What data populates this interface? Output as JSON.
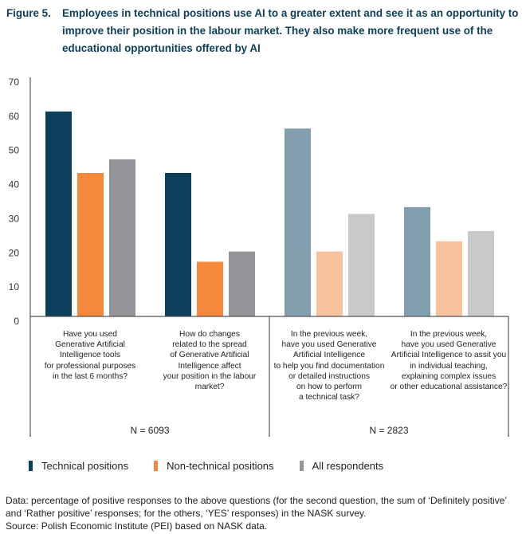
{
  "figure": {
    "label": "Figure 5.",
    "title": "Employees in technical positions use AI to a greater extent and see it as an opportunity to improve their position in the labour market. They also make more frequent use of the educational opportunities offered by AI"
  },
  "chart_data": {
    "type": "bar",
    "title": "Employees in technical positions use AI to a greater extent and see it as an opportunity to improve their position in the labour market. They also make more frequent use of the educational opportunities offered by AI",
    "xlabel": "",
    "ylabel": "",
    "ylim": [
      0,
      70
    ],
    "yticks": [
      0,
      10,
      20,
      30,
      40,
      50,
      60,
      70
    ],
    "grid": false,
    "legend_position": "bottom-left",
    "categories": [
      "Have you used\nGenerative Artificial\nIntelligence tools\nfor professional purposes\nin the last 6 months?",
      "How do changes\nrelated to the spread\nof Generative Artificial\nIntelligence affect\nyour position in the labour\nmarket?",
      "In the previous week,\nhave you used Generative\nArtificial Intelligence\nto help you find documentation\nor detailed instructions\non how to perform\na technical task?",
      "In the previous week,\nhave you used Generative\nArtificial Intelligence to assit you\nin individual teaching,\nexplaining complex issues\nor other educational assistance?"
    ],
    "series": [
      {
        "name": "Technical positions",
        "values": [
          60,
          42,
          55,
          32
        ],
        "colors": [
          "#0b3f5a",
          "#0b3f5a",
          "#829fae",
          "#829fae"
        ]
      },
      {
        "name": "Non-technical positions",
        "values": [
          42,
          16,
          19,
          22
        ],
        "colors": [
          "#f5883b",
          "#f5883b",
          "#f8c29c",
          "#f8c29c"
        ]
      },
      {
        "name": "All respondents",
        "values": [
          46,
          19,
          30,
          25
        ],
        "colors": [
          "#939598",
          "#939598",
          "#c8c9cb",
          "#c8c9cb"
        ]
      }
    ],
    "sample_groups": [
      {
        "label": "N = 6093",
        "categories": [
          0,
          1
        ]
      },
      {
        "label": "N = 2823",
        "categories": [
          2,
          3
        ]
      }
    ]
  },
  "legend": [
    {
      "label": "Technical positions",
      "color": "#0b3f5a"
    },
    {
      "label": "Non-technical positions",
      "color": "#f5883b"
    },
    {
      "label": "All respondents",
      "color": "#939598"
    }
  ],
  "footnote": {
    "data_note": "Data: percentage of positive responses to the above questions (for the second question, the sum of ‘Definitely positive’ and ‘Rather positive’ responses; for the others, ‘YES’ responses) in the NASK survey.",
    "source": "Source: Polish Economic Institute (PEI) based on NASK data."
  }
}
